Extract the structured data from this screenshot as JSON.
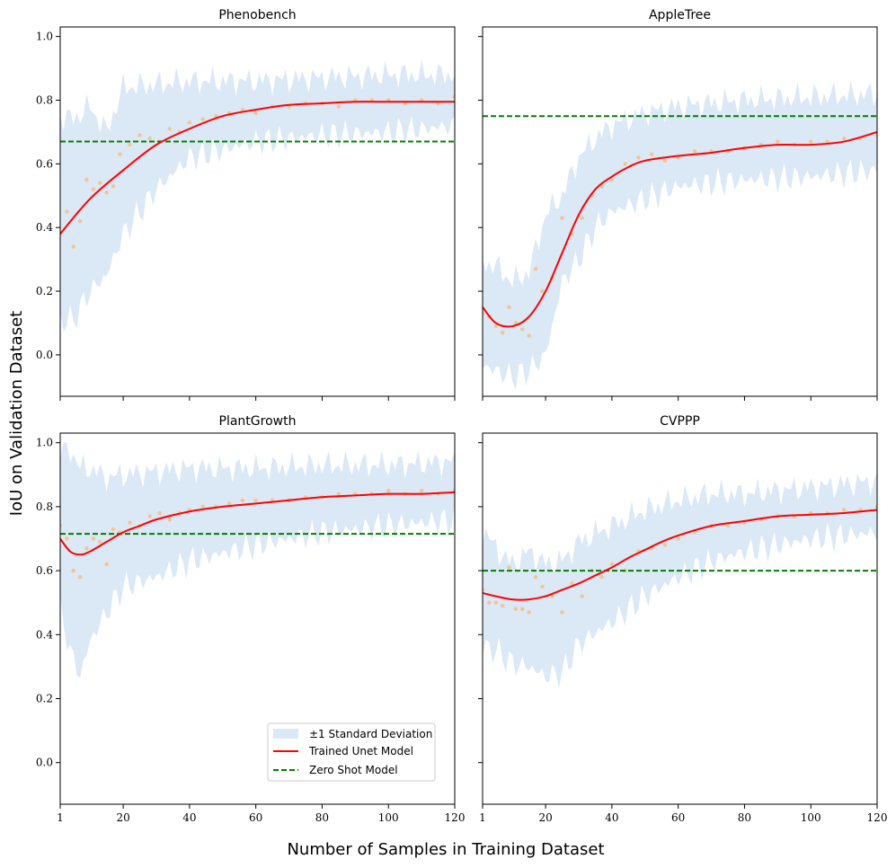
{
  "figure": {
    "xlabel": "Number of Samples in Training Dataset",
    "ylabel": "IoU on Validation Dataset"
  },
  "legend": {
    "std_label": "±1 Standard Deviation",
    "model_label": "Trained Unet Model",
    "zero_shot_label": "Zero Shot Model",
    "placement": "lower-right of bottom-left panel"
  },
  "colors": {
    "band": "#dbe8f5",
    "fit_line": "#ff0000",
    "zero_shot": "#008000",
    "points": "#f5c08a"
  },
  "chart_data": [
    {
      "type": "line",
      "title": "Phenobench",
      "xlim": [
        1,
        120
      ],
      "ylim": [
        -0.13,
        1.03
      ],
      "xticks": [
        1,
        20,
        40,
        60,
        80,
        100,
        120
      ],
      "yticks": [
        0.0,
        0.2,
        0.4,
        0.6,
        0.8,
        1.0
      ],
      "zero_shot": 0.67,
      "fit": {
        "x": [
          1,
          10,
          20,
          30,
          40,
          50,
          60,
          70,
          80,
          90,
          100,
          110,
          120
        ],
        "y": [
          0.38,
          0.49,
          0.58,
          0.66,
          0.71,
          0.75,
          0.77,
          0.785,
          0.79,
          0.795,
          0.795,
          0.795,
          0.795
        ]
      },
      "band": {
        "x": [
          1,
          5,
          10,
          15,
          20,
          30,
          40,
          60,
          80,
          100,
          120
        ],
        "upper": [
          0.75,
          0.74,
          0.78,
          0.7,
          0.84,
          0.85,
          0.86,
          0.86,
          0.87,
          0.88,
          0.88
        ],
        "lower": [
          0.11,
          0.11,
          0.2,
          0.25,
          0.38,
          0.52,
          0.62,
          0.67,
          0.69,
          0.7,
          0.72
        ]
      },
      "points": {
        "x": [
          1,
          3,
          5,
          7,
          9,
          11,
          13,
          15,
          17,
          19,
          22,
          25,
          28,
          31,
          34,
          37,
          40,
          44,
          48,
          52,
          56,
          60,
          65,
          70,
          75,
          80,
          85,
          90,
          95,
          100,
          105,
          110,
          115,
          120
        ],
        "y": [
          0.38,
          0.45,
          0.34,
          0.42,
          0.55,
          0.52,
          0.54,
          0.51,
          0.53,
          0.63,
          0.66,
          0.69,
          0.68,
          0.67,
          0.71,
          0.7,
          0.73,
          0.74,
          0.75,
          0.76,
          0.77,
          0.76,
          0.78,
          0.78,
          0.79,
          0.79,
          0.78,
          0.8,
          0.8,
          0.8,
          0.79,
          0.8,
          0.79,
          0.81
        ]
      }
    },
    {
      "type": "line",
      "title": "AppleTree",
      "xlim": [
        1,
        120
      ],
      "ylim": [
        -0.13,
        1.03
      ],
      "xticks": [
        1,
        20,
        40,
        60,
        80,
        100,
        120
      ],
      "yticks": [
        0.0,
        0.2,
        0.4,
        0.6,
        0.8,
        1.0
      ],
      "zero_shot": 0.75,
      "fit": {
        "x": [
          1,
          5,
          10,
          15,
          20,
          25,
          30,
          35,
          40,
          45,
          50,
          60,
          70,
          80,
          90,
          100,
          110,
          120
        ],
        "y": [
          0.15,
          0.1,
          0.09,
          0.12,
          0.2,
          0.32,
          0.44,
          0.52,
          0.56,
          0.59,
          0.61,
          0.625,
          0.635,
          0.65,
          0.66,
          0.66,
          0.67,
          0.7
        ]
      },
      "band": {
        "x": [
          1,
          5,
          10,
          15,
          20,
          25,
          30,
          35,
          40,
          50,
          60,
          80,
          100,
          120
        ],
        "upper": [
          0.29,
          0.28,
          0.23,
          0.26,
          0.44,
          0.5,
          0.62,
          0.68,
          0.72,
          0.76,
          0.78,
          0.8,
          0.81,
          0.82
        ],
        "lower": [
          -0.03,
          -0.05,
          -0.07,
          -0.05,
          0.0,
          0.23,
          0.3,
          0.4,
          0.45,
          0.49,
          0.53,
          0.55,
          0.56,
          0.58
        ]
      },
      "points": {
        "x": [
          1,
          3,
          5,
          7,
          9,
          11,
          13,
          15,
          17,
          19,
          22,
          25,
          28,
          31,
          34,
          37,
          40,
          44,
          48,
          52,
          56,
          60,
          65,
          70,
          75,
          80,
          85,
          90,
          95,
          100,
          105,
          110,
          115,
          120
        ],
        "y": [
          0.13,
          0.12,
          0.09,
          0.07,
          0.15,
          0.1,
          0.08,
          0.06,
          0.27,
          0.2,
          0.24,
          0.43,
          0.38,
          0.43,
          0.5,
          0.53,
          0.55,
          0.6,
          0.62,
          0.63,
          0.61,
          0.62,
          0.64,
          0.64,
          0.64,
          0.65,
          0.66,
          0.67,
          0.66,
          0.67,
          0.67,
          0.68,
          0.68,
          0.69
        ]
      }
    },
    {
      "type": "line",
      "title": "PlantGrowth",
      "xlim": [
        1,
        120
      ],
      "ylim": [
        -0.13,
        1.03
      ],
      "xticks": [
        1,
        20,
        40,
        60,
        80,
        100,
        120
      ],
      "yticks": [
        0.0,
        0.2,
        0.4,
        0.6,
        0.8,
        1.0
      ],
      "zero_shot": 0.715,
      "fit": {
        "x": [
          1,
          4,
          7,
          10,
          15,
          20,
          25,
          30,
          40,
          50,
          60,
          70,
          80,
          90,
          100,
          110,
          120
        ],
        "y": [
          0.7,
          0.66,
          0.65,
          0.66,
          0.69,
          0.72,
          0.74,
          0.76,
          0.785,
          0.8,
          0.81,
          0.82,
          0.83,
          0.835,
          0.84,
          0.84,
          0.845
        ]
      },
      "band": {
        "x": [
          1,
          4,
          7,
          10,
          15,
          20,
          30,
          40,
          60,
          80,
          100,
          120
        ],
        "upper": [
          0.97,
          0.98,
          0.92,
          0.92,
          0.89,
          0.9,
          0.91,
          0.92,
          0.92,
          0.93,
          0.93,
          0.94
        ],
        "lower": [
          0.48,
          0.35,
          0.27,
          0.38,
          0.47,
          0.55,
          0.58,
          0.63,
          0.68,
          0.72,
          0.74,
          0.76
        ]
      },
      "points": {
        "x": [
          1,
          3,
          5,
          7,
          9,
          11,
          13,
          15,
          17,
          19,
          22,
          25,
          28,
          31,
          34,
          37,
          40,
          44,
          48,
          52,
          56,
          60,
          65,
          70,
          75,
          80,
          85,
          90,
          95,
          100,
          105,
          110,
          115,
          120
        ],
        "y": [
          0.74,
          0.7,
          0.6,
          0.58,
          0.67,
          0.7,
          0.69,
          0.62,
          0.73,
          0.72,
          0.75,
          0.74,
          0.77,
          0.78,
          0.76,
          0.78,
          0.79,
          0.8,
          0.8,
          0.81,
          0.82,
          0.82,
          0.82,
          0.82,
          0.83,
          0.83,
          0.84,
          0.84,
          0.84,
          0.85,
          0.84,
          0.85,
          0.84,
          0.85
        ]
      }
    },
    {
      "type": "line",
      "title": "CVPPP",
      "xlim": [
        1,
        120
      ],
      "ylim": [
        -0.13,
        1.03
      ],
      "xticks": [
        1,
        20,
        40,
        60,
        80,
        100,
        120
      ],
      "yticks": [
        0.0,
        0.2,
        0.4,
        0.6,
        0.8,
        1.0
      ],
      "zero_shot": 0.6,
      "fit": {
        "x": [
          1,
          5,
          10,
          15,
          20,
          25,
          30,
          35,
          40,
          45,
          50,
          55,
          60,
          70,
          80,
          90,
          100,
          110,
          120
        ],
        "y": [
          0.53,
          0.52,
          0.51,
          0.51,
          0.52,
          0.54,
          0.56,
          0.585,
          0.61,
          0.64,
          0.665,
          0.69,
          0.71,
          0.74,
          0.755,
          0.77,
          0.775,
          0.78,
          0.79
        ]
      },
      "band": {
        "x": [
          1,
          5,
          10,
          15,
          20,
          25,
          30,
          40,
          50,
          60,
          70,
          80,
          100,
          120
        ],
        "upper": [
          0.73,
          0.67,
          0.62,
          0.66,
          0.62,
          0.63,
          0.69,
          0.74,
          0.79,
          0.82,
          0.84,
          0.84,
          0.86,
          0.88
        ],
        "lower": [
          0.36,
          0.35,
          0.31,
          0.3,
          0.27,
          0.28,
          0.37,
          0.44,
          0.52,
          0.58,
          0.63,
          0.66,
          0.7,
          0.72
        ]
      },
      "points": {
        "x": [
          1,
          3,
          5,
          7,
          9,
          11,
          13,
          15,
          17,
          19,
          22,
          25,
          28,
          31,
          34,
          37,
          40,
          44,
          48,
          52,
          56,
          60,
          65,
          70,
          75,
          80,
          85,
          90,
          95,
          100,
          105,
          110,
          115,
          120
        ],
        "y": [
          0.54,
          0.5,
          0.5,
          0.49,
          0.61,
          0.48,
          0.48,
          0.47,
          0.58,
          0.55,
          0.52,
          0.47,
          0.56,
          0.52,
          0.6,
          0.58,
          0.62,
          0.6,
          0.66,
          0.67,
          0.68,
          0.7,
          0.72,
          0.74,
          0.74,
          0.75,
          0.76,
          0.77,
          0.77,
          0.78,
          0.78,
          0.79,
          0.79,
          0.8
        ]
      }
    }
  ]
}
